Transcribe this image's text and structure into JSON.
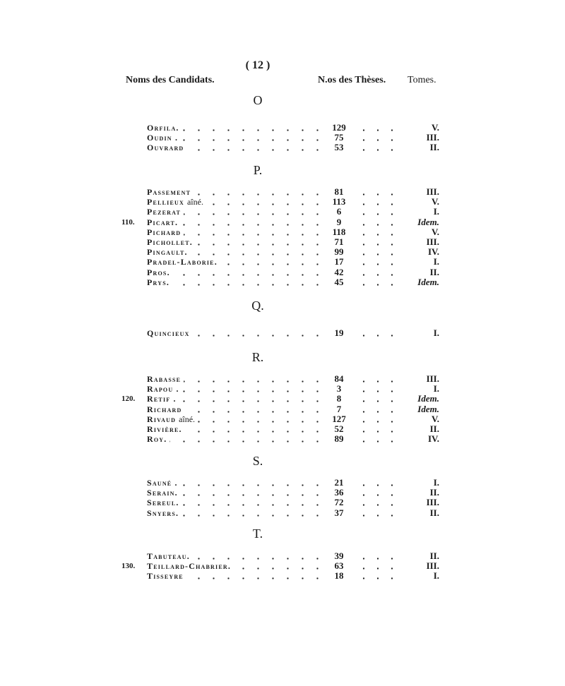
{
  "page_number": "( 12 )",
  "header": {
    "names": "Noms des Candidats.",
    "theses": "N.os des Thèses.",
    "tomes": "Tomes."
  },
  "sections": [
    {
      "letter": "O",
      "rows": [
        {
          "name": "Orfila.",
          "number": "129",
          "tome": "V."
        },
        {
          "name": "Oudin .",
          "number": "75",
          "tome": "III."
        },
        {
          "name": "Ouvrard",
          "number": "53",
          "tome": "II."
        }
      ]
    },
    {
      "letter": "P.",
      "rows": [
        {
          "name": "Passement",
          "number": "81",
          "tome": "III."
        },
        {
          "name": "Pellieux",
          "qualifier": "aîné.",
          "number": "113",
          "tome": "V."
        },
        {
          "name": "Pezerat",
          "number": "6",
          "tome": "I."
        },
        {
          "margin": "110.",
          "name": "Picart.",
          "number": "9",
          "tome": "Idem."
        },
        {
          "name": "Pichard",
          "number": "118",
          "tome": "V."
        },
        {
          "name": "Pichollet.",
          "number": "71",
          "tome": "III."
        },
        {
          "name": "Pingault.",
          "number": "99",
          "tome": "IV."
        },
        {
          "name": "Pradel-Laborie.",
          "number": "17",
          "tome": "I."
        },
        {
          "name": "Pros.",
          "number": "42",
          "tome": "II."
        },
        {
          "name": "Prys.",
          "number": "45",
          "tome": "Idem."
        }
      ]
    },
    {
      "letter": "Q.",
      "rows": [
        {
          "name": "Quincieux",
          "number": "19",
          "tome": "I."
        }
      ]
    },
    {
      "letter": "R.",
      "rows": [
        {
          "name": "Rabasse",
          "number": "84",
          "tome": "III."
        },
        {
          "name": "Rapou .",
          "number": "3",
          "tome": "I."
        },
        {
          "margin": "120.",
          "name": "Retif .",
          "number": "8",
          "tome": "Idem."
        },
        {
          "name": "Richard",
          "number": "7",
          "tome": "Idem."
        },
        {
          "name": "Rivaud",
          "qualifier": "aîné.",
          "number": "127",
          "tome": "V."
        },
        {
          "name": "Rivière.",
          "number": "52",
          "tome": "II."
        },
        {
          "name": "Roy.",
          "number": "89",
          "tome": "IV."
        }
      ]
    },
    {
      "letter": "S.",
      "rows": [
        {
          "name": "Sauné .",
          "number": "21",
          "tome": "I."
        },
        {
          "name": "Serain.",
          "number": "36",
          "tome": "II."
        },
        {
          "name": "Sereul.",
          "number": "72",
          "tome": "III."
        },
        {
          "name": "Snyers.",
          "number": "37",
          "tome": "II."
        }
      ]
    },
    {
      "letter": "T.",
      "rows": [
        {
          "name": "Tabuteau.",
          "number": "39",
          "tome": "II."
        },
        {
          "margin": "130.",
          "name": "Teillard-Chabrier.",
          "number": "63",
          "tome": "III."
        },
        {
          "name": "Tisseyre",
          "number": "18",
          "tome": "I."
        }
      ]
    }
  ]
}
